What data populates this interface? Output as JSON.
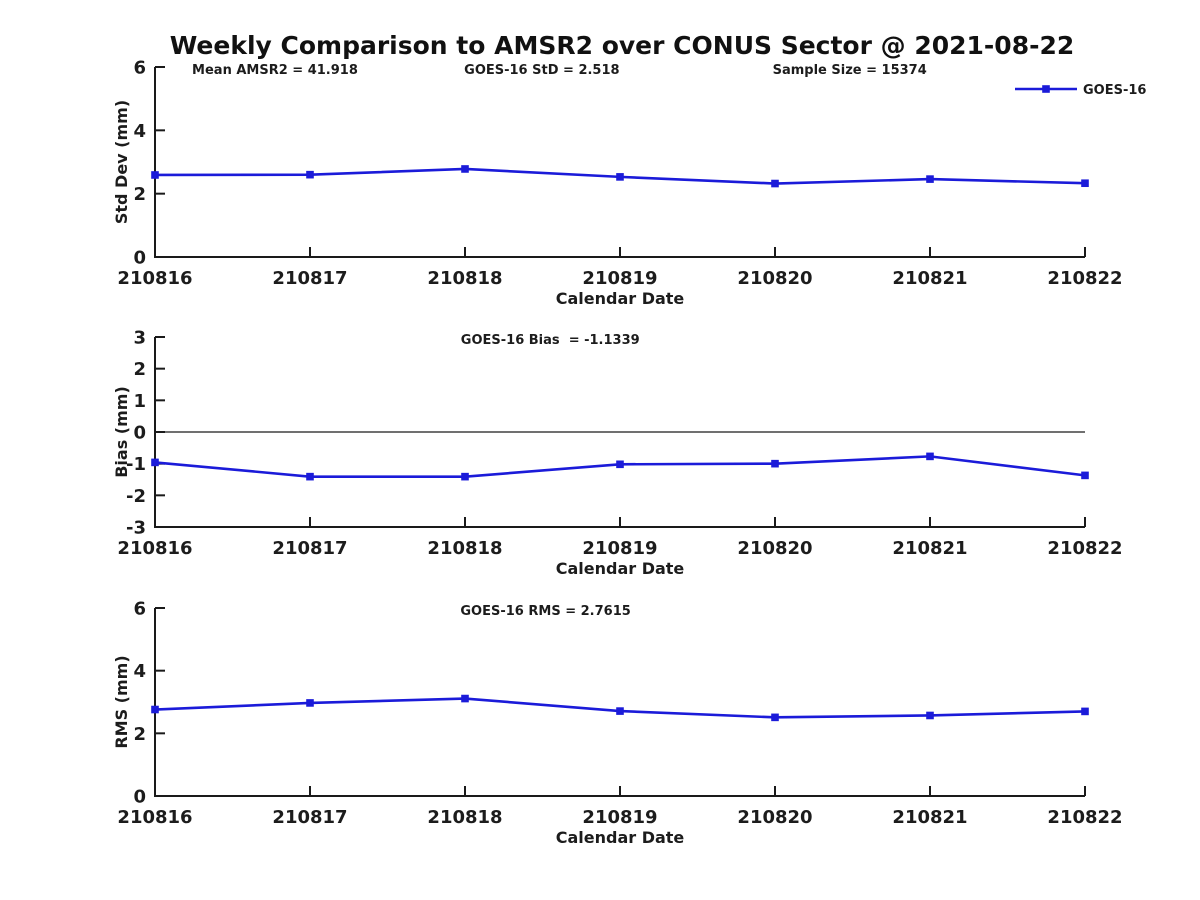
{
  "title": "Weekly Comparison to AMSR2 over CONUS Sector @ 2021-08-22",
  "colors": {
    "series": "#1b1bd9",
    "axis": "#1a1a1a",
    "text": "#1c1c1c",
    "background": "#ffffff"
  },
  "chart_data": [
    {
      "type": "line",
      "name": "std-dev",
      "ylabel": "Std Dev (mm)",
      "xlabel": "Calendar Date",
      "ylim": [
        0,
        6
      ],
      "yticks": [
        0,
        2,
        4,
        6
      ],
      "categories": [
        "210816",
        "210817",
        "210818",
        "210819",
        "210820",
        "210821",
        "210822"
      ],
      "series": [
        {
          "name": "GOES-16",
          "values": [
            2.59,
            2.6,
            2.78,
            2.53,
            2.32,
            2.46,
            2.33
          ]
        }
      ],
      "annotations": [
        "Mean AMSR2 = 41.918",
        "GOES-16 StD = 2.518",
        "Sample Size = 15374"
      ],
      "legend": {
        "position": "top-right",
        "entries": [
          "GOES-16"
        ]
      },
      "zero_line": false,
      "grid": false
    },
    {
      "type": "line",
      "name": "bias",
      "ylabel": "Bias (mm)",
      "xlabel": "Calendar Date",
      "ylim": [
        -3,
        3
      ],
      "yticks": [
        -3,
        -2,
        -1,
        0,
        1,
        2,
        3
      ],
      "categories": [
        "210816",
        "210817",
        "210818",
        "210819",
        "210820",
        "210821",
        "210822"
      ],
      "series": [
        {
          "name": "GOES-16",
          "values": [
            -0.96,
            -1.41,
            -1.41,
            -1.02,
            -1.0,
            -0.77,
            -1.37
          ]
        }
      ],
      "annotations": [
        "GOES-16 Bias  = -1.1339"
      ],
      "legend": null,
      "zero_line": true,
      "grid": false
    },
    {
      "type": "line",
      "name": "rms",
      "ylabel": "RMS (mm)",
      "xlabel": "Calendar Date",
      "ylim": [
        0,
        6
      ],
      "yticks": [
        0,
        2,
        4,
        6
      ],
      "categories": [
        "210816",
        "210817",
        "210818",
        "210819",
        "210820",
        "210821",
        "210822"
      ],
      "series": [
        {
          "name": "GOES-16",
          "values": [
            2.76,
            2.97,
            3.11,
            2.71,
            2.51,
            2.57,
            2.7
          ]
        }
      ],
      "annotations": [
        "GOES-16 RMS = 2.7615"
      ],
      "legend": null,
      "zero_line": false,
      "grid": false
    }
  ]
}
